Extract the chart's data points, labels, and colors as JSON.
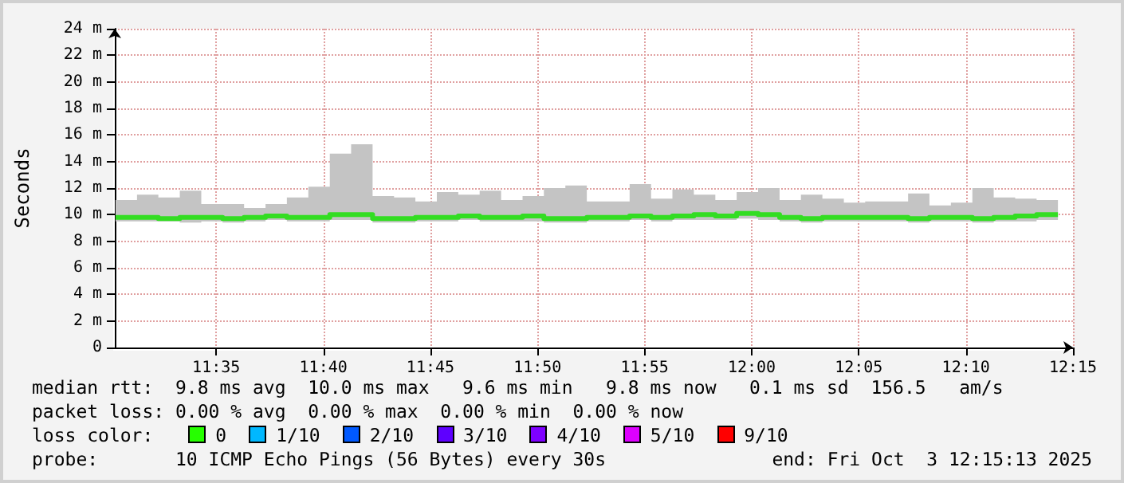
{
  "chart_data": {
    "type": "step",
    "ylabel": "Seconds",
    "x": [
      11.505,
      11.5217,
      11.5383,
      11.555,
      11.5717,
      11.5883,
      11.605,
      11.6217,
      11.6383,
      11.655,
      11.6717,
      11.6883,
      11.705,
      11.7217,
      11.7383,
      11.755,
      11.7717,
      11.7883,
      11.805,
      11.8217,
      11.8383,
      11.855,
      11.8717,
      11.8883,
      11.905,
      11.9217,
      11.9383,
      11.955,
      11.9717,
      11.9883,
      12.005,
      12.0217,
      12.0383,
      12.055,
      12.0717,
      12.0883,
      12.105,
      12.1217,
      12.1383,
      12.155,
      12.1717,
      12.1883,
      12.205,
      12.2217,
      12.2383
    ],
    "series": [
      {
        "color": "#33dd22",
        "values": [
          9.8,
          9.8,
          9.7,
          9.8,
          9.8,
          9.7,
          9.8,
          9.9,
          9.8,
          9.8,
          10.0,
          10.0,
          9.7,
          9.7,
          9.8,
          9.8,
          9.9,
          9.8,
          9.8,
          9.9,
          9.7,
          9.7,
          9.8,
          9.8,
          9.9,
          9.8,
          9.9,
          10.0,
          9.9,
          10.1,
          10.0,
          9.8,
          9.7,
          9.8,
          9.8,
          9.8,
          9.8,
          9.7,
          9.8,
          9.8,
          9.7,
          9.8,
          9.9,
          10.0,
          10.0
        ],
        "lower": [
          9.5,
          9.5,
          9.5,
          9.4,
          9.5,
          9.4,
          9.5,
          9.6,
          9.5,
          9.5,
          9.6,
          9.6,
          9.4,
          9.4,
          9.5,
          9.5,
          9.6,
          9.5,
          9.5,
          9.5,
          9.4,
          9.4,
          9.5,
          9.5,
          9.6,
          9.5,
          9.6,
          9.6,
          9.6,
          9.7,
          9.6,
          9.5,
          9.4,
          9.5,
          9.5,
          9.5,
          9.5,
          9.4,
          9.5,
          9.5,
          9.4,
          9.5,
          9.5,
          9.6,
          9.6
        ],
        "upper": [
          11.1,
          11.5,
          11.3,
          11.8,
          10.8,
          10.8,
          10.5,
          10.8,
          11.3,
          12.1,
          14.6,
          15.3,
          11.4,
          11.3,
          11.0,
          11.7,
          11.5,
          11.8,
          11.1,
          11.4,
          12.0,
          12.2,
          11.0,
          11.0,
          12.3,
          11.2,
          11.9,
          11.5,
          11.1,
          11.7,
          12.0,
          11.1,
          11.5,
          11.2,
          10.9,
          11.0,
          11.0,
          11.6,
          10.7,
          10.9,
          12.0,
          11.3,
          11.2,
          11.1,
          11.3
        ]
      }
    ],
    "xlim": [
      11.5044,
      12.25
    ],
    "xticks": [
      {
        "value": 11.5833,
        "label": "11:35"
      },
      {
        "value": 11.6667,
        "label": "11:40"
      },
      {
        "value": 11.75,
        "label": "11:45"
      },
      {
        "value": 11.8333,
        "label": "11:50"
      },
      {
        "value": 11.9167,
        "label": "11:55"
      },
      {
        "value": 12,
        "label": "12:00"
      },
      {
        "value": 12.0833,
        "label": "12:05"
      },
      {
        "value": 12.1667,
        "label": "12:10"
      },
      {
        "value": 12.25,
        "label": "12:15"
      }
    ],
    "ylim": [
      0,
      24
    ],
    "yticks": [
      0,
      {
        "value": 2,
        "label": "2 m"
      },
      {
        "value": 4,
        "label": "4 m"
      },
      {
        "value": 6,
        "label": "6 m"
      },
      {
        "value": 8,
        "label": "8 m"
      },
      {
        "value": 10,
        "label": "10 m"
      },
      {
        "value": 12,
        "label": "12 m"
      },
      {
        "value": 14,
        "label": "14 m"
      },
      {
        "value": 16,
        "label": "16 m"
      },
      {
        "value": 18,
        "label": "18 m"
      },
      {
        "value": 20,
        "label": "20 m"
      },
      {
        "value": 22,
        "label": "22 m"
      },
      {
        "value": 24,
        "label": "24 m"
      }
    ],
    "grid": true,
    "annotations": [
      "median rtt:  9.8 ms avg  10.0 ms max   9.6 ms min   9.8 ms now   0.1 ms sd  156.5   am/s",
      "packet loss: 0.00 % avg  0.00 % max  0.00 % min  0.00 % now",
      "loss color:",
      "0",
      "1/10",
      "2/10",
      "3/10",
      "4/10",
      "5/10",
      "9/10",
      "probe:       10 ICMP Echo Pings (56 Bytes) every 30s",
      "end: Fri Oct  3 12:15:13 2025"
    ]
  }
}
